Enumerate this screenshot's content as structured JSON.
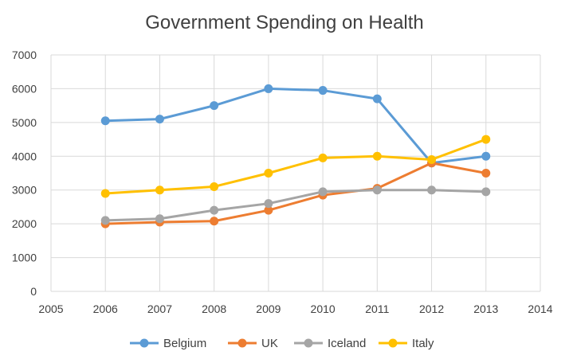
{
  "chart_data": {
    "type": "line",
    "title": "Government Spending on Health",
    "xlabel": "",
    "ylabel": "",
    "xlim": [
      2005,
      2014
    ],
    "ylim": [
      0,
      7000
    ],
    "x_ticks": [
      "2005",
      "2006",
      "2007",
      "2008",
      "2009",
      "2010",
      "2011",
      "2012",
      "2013",
      "2014"
    ],
    "y_ticks": [
      "0",
      "1000",
      "2000",
      "3000",
      "4000",
      "5000",
      "6000",
      "7000"
    ],
    "grid": true,
    "legend_position": "bottom",
    "x": [
      2006,
      2007,
      2008,
      2009,
      2010,
      2011,
      2012,
      2013
    ],
    "series": [
      {
        "name": "Belgium",
        "color": "#5b9bd5",
        "values": [
          5050,
          5100,
          5500,
          6000,
          5950,
          5700,
          3800,
          4000
        ]
      },
      {
        "name": "UK",
        "color": "#ed7d31",
        "values": [
          2000,
          2050,
          2080,
          2400,
          2850,
          3050,
          3800,
          3500
        ]
      },
      {
        "name": "Iceland",
        "color": "#a5a5a5",
        "values": [
          2100,
          2150,
          2400,
          2600,
          2950,
          3000,
          3000,
          2950
        ]
      },
      {
        "name": "Italy",
        "color": "#ffc000",
        "values": [
          2900,
          3000,
          3100,
          3500,
          3950,
          4000,
          3900,
          4500
        ]
      }
    ]
  }
}
